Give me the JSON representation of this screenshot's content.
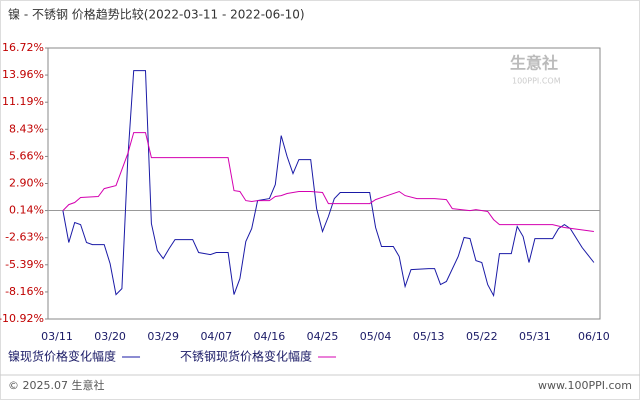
{
  "chart_data": {
    "type": "line",
    "title": "镍 - 不锈钢 价格趋势比较(2022-03-11 - 2022-06-10)",
    "xticks": [
      "03/11",
      "03/20",
      "03/29",
      "04/07",
      "04/16",
      "04/25",
      "05/04",
      "05/13",
      "05/22",
      "05/31",
      "06/10"
    ],
    "ylim": [
      -10.92,
      16.72
    ],
    "yticks": [
      {
        "value": 16.72,
        "label": "16.72%"
      },
      {
        "value": 13.96,
        "label": "13.96%"
      },
      {
        "value": 11.19,
        "label": "11.19%"
      },
      {
        "value": 8.43,
        "label": "8.43%"
      },
      {
        "value": 5.66,
        "label": "5.66%"
      },
      {
        "value": 2.9,
        "label": "2.90%"
      },
      {
        "value": 0.14,
        "label": "0.14%"
      },
      {
        "value": -2.63,
        "label": "-2.63%"
      },
      {
        "value": -5.39,
        "label": "-5.39%"
      },
      {
        "value": -8.16,
        "label": "-8.16%"
      },
      {
        "value": -10.92,
        "label": "-10.92%"
      }
    ],
    "reference_line": 0.14,
    "series": [
      {
        "name": "镍现货价格变化幅度",
        "color": "#1a1aa6",
        "x": [
          "03/12",
          "03/13",
          "03/14",
          "03/15",
          "03/16",
          "03/17",
          "03/19",
          "03/20",
          "03/21",
          "03/22",
          "03/23",
          "03/24",
          "03/26",
          "03/27",
          "03/28",
          "03/29",
          "03/30",
          "03/31",
          "04/03",
          "04/04",
          "04/06",
          "04/07",
          "04/09",
          "04/10",
          "04/11",
          "04/12",
          "04/13",
          "04/14",
          "04/16",
          "04/17",
          "04/18",
          "04/19",
          "04/20",
          "04/21",
          "04/23",
          "04/24",
          "04/25",
          "04/26",
          "04/27",
          "04/28",
          "05/03",
          "05/04",
          "05/05",
          "05/07",
          "05/08",
          "05/09",
          "05/10",
          "05/13",
          "05/14",
          "05/15",
          "05/16",
          "05/18",
          "05/19",
          "05/20",
          "05/21",
          "05/22",
          "05/23",
          "05/24",
          "05/25",
          "05/27",
          "05/28",
          "05/29",
          "05/30",
          "05/31",
          "06/03",
          "06/04",
          "06/05",
          "06/06",
          "06/08",
          "06/10"
        ],
        "values": [
          0.14,
          -3.12,
          -1.08,
          -1.29,
          -3.12,
          -3.33,
          -3.33,
          -5.27,
          -8.43,
          -7.82,
          5.44,
          14.42,
          14.42,
          -1.19,
          -3.94,
          -4.76,
          -3.74,
          -2.82,
          -2.82,
          -4.14,
          -4.35,
          -4.14,
          -4.14,
          -8.43,
          -6.8,
          -3.02,
          -1.7,
          1.16,
          1.36,
          2.79,
          7.79,
          5.65,
          3.91,
          5.34,
          5.34,
          0.34,
          -2.0,
          -0.47,
          1.36,
          1.98,
          1.98,
          -1.59,
          -3.53,
          -3.53,
          -4.55,
          -7.61,
          -5.88,
          -5.78,
          -5.78,
          -7.41,
          -7.1,
          -4.55,
          -2.61,
          -2.72,
          -4.96,
          -5.16,
          -7.41,
          -8.53,
          -4.25,
          -4.25,
          -1.49,
          -2.51,
          -5.16,
          -2.72,
          -2.72,
          -1.7,
          -1.29,
          -1.7,
          -3.63,
          -5.16
        ]
      },
      {
        "name": "不锈钢现货价格变化幅度",
        "color": "#d400b0",
        "x": [
          "03/12",
          "03/13",
          "03/14",
          "03/15",
          "03/18",
          "03/19",
          "03/21",
          "03/23",
          "03/24",
          "03/26",
          "03/27",
          "04/09",
          "04/10",
          "04/11",
          "04/12",
          "04/13",
          "04/14",
          "04/16",
          "04/17",
          "04/18",
          "04/19",
          "04/20",
          "04/21",
          "04/23",
          "04/25",
          "04/26",
          "05/03",
          "05/04",
          "05/08",
          "05/09",
          "05/11",
          "05/14",
          "05/16",
          "05/17",
          "05/20",
          "05/21",
          "05/23",
          "05/24",
          "05/25",
          "06/03",
          "06/05",
          "06/10"
        ],
        "values": [
          0.14,
          0.75,
          0.96,
          1.47,
          1.57,
          2.38,
          2.69,
          5.95,
          8.09,
          8.09,
          5.54,
          5.54,
          2.18,
          2.08,
          1.16,
          1.06,
          1.16,
          1.16,
          1.57,
          1.67,
          1.88,
          1.98,
          2.08,
          2.08,
          1.98,
          0.85,
          0.85,
          1.26,
          2.08,
          1.67,
          1.36,
          1.36,
          1.26,
          0.34,
          0.14,
          0.24,
          0.04,
          -0.78,
          -1.29,
          -1.29,
          -1.59,
          -2.0
        ]
      }
    ],
    "watermark": {
      "name": "生意社",
      "site": "100PPI.COM"
    },
    "footer_left": "© 2025.07 生意社",
    "footer_right": "www.100PPI.com"
  }
}
